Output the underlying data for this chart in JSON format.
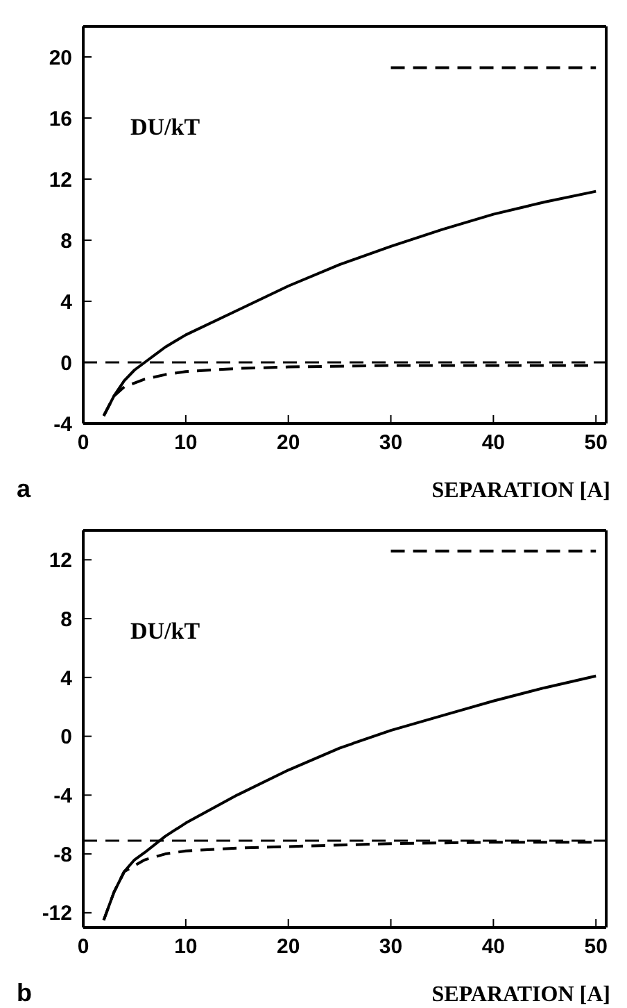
{
  "chart_data": [
    {
      "type": "line",
      "title": "a",
      "xlabel": "SEPARATION [A]",
      "ylabel": "DU/kT",
      "xlim": [
        0,
        51
      ],
      "xticks": [
        0,
        10,
        20,
        30,
        40,
        50
      ],
      "ylim": [
        -4,
        22
      ],
      "yticks": [
        -4,
        0,
        4,
        8,
        12,
        16,
        20
      ],
      "marker": "none",
      "ref_lines": [
        {
          "axis": "y",
          "value": 0,
          "line_style": "dashed",
          "color": "#000000"
        }
      ],
      "series": [
        {
          "color": "#000000",
          "line_style": "solid",
          "x": [
            2,
            3,
            4,
            5,
            6,
            8,
            10,
            15,
            20,
            25,
            30,
            35,
            40,
            45,
            50
          ],
          "values": [
            -3.5,
            -2.2,
            -1.2,
            -0.5,
            0,
            1,
            1.8,
            3.4,
            5,
            6.4,
            7.6,
            8.7,
            9.7,
            10.5,
            11.2
          ]
        },
        {
          "color": "#000000",
          "line_style": "dashed",
          "x": [
            2,
            3,
            4,
            6,
            8,
            10,
            15,
            20,
            30,
            40,
            50
          ],
          "values": [
            -3.5,
            -2.2,
            -1.6,
            -1.1,
            -0.8,
            -0.6,
            -0.4,
            -0.3,
            -0.2,
            -0.2,
            -0.2
          ]
        },
        {
          "color": "#000000",
          "line_style": "dashed",
          "x": [
            30,
            50
          ],
          "values": [
            19.3,
            19.3
          ]
        }
      ]
    },
    {
      "type": "line",
      "title": "b",
      "xlabel": "SEPARATION [A]",
      "ylabel": "DU/kT",
      "xlim": [
        0,
        51
      ],
      "xticks": [
        0,
        10,
        20,
        30,
        40,
        50
      ],
      "ylim": [
        -13,
        14
      ],
      "yticks": [
        -12,
        -8,
        -4,
        0,
        4,
        8,
        12
      ],
      "marker": "none",
      "ref_lines": [
        {
          "axis": "y",
          "value": -7.1,
          "line_style": "dashed",
          "color": "#000000"
        }
      ],
      "series": [
        {
          "color": "#000000",
          "line_style": "solid",
          "x": [
            2,
            3,
            4,
            5,
            6,
            8,
            10,
            15,
            20,
            25,
            30,
            35,
            40,
            45,
            50
          ],
          "values": [
            -12.5,
            -10.6,
            -9.2,
            -8.4,
            -7.9,
            -6.8,
            -5.9,
            -4,
            -2.3,
            -0.8,
            0.4,
            1.4,
            2.4,
            3.3,
            4.1
          ]
        },
        {
          "color": "#000000",
          "line_style": "dashed",
          "x": [
            2,
            3,
            4,
            5,
            6,
            8,
            10,
            15,
            20,
            30,
            40,
            50
          ],
          "values": [
            -12.5,
            -10.6,
            -9.2,
            -8.8,
            -8.4,
            -8,
            -7.8,
            -7.6,
            -7.5,
            -7.3,
            -7.2,
            -7.2
          ]
        },
        {
          "color": "#000000",
          "line_style": "dashed",
          "x": [
            30,
            50
          ],
          "values": [
            12.6,
            12.6
          ]
        }
      ]
    }
  ]
}
